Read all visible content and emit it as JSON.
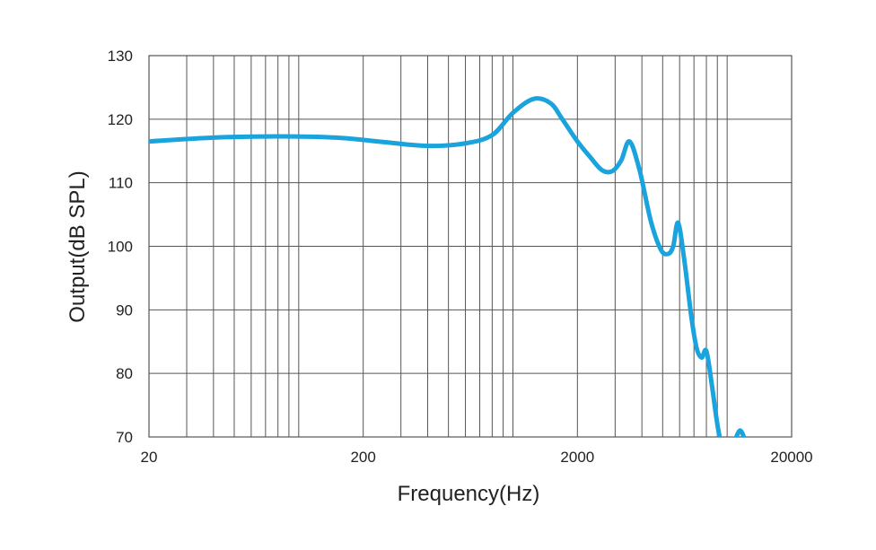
{
  "chart_data": {
    "type": "line",
    "title": "",
    "xlabel": "Frequency(Hz)",
    "ylabel": "Output(dB SPL)",
    "x_scale": "log",
    "xlim": [
      20,
      20000
    ],
    "ylim": [
      70,
      130
    ],
    "x_tick_labels": [
      "20",
      "200",
      "2000",
      "20000"
    ],
    "y_tick_labels": [
      "70",
      "80",
      "90",
      "100",
      "110",
      "120",
      "130"
    ],
    "grid": true,
    "legend": "none",
    "series_color": "#1aa3dc",
    "series": [
      {
        "x": [
          20,
          40,
          80,
          150,
          250,
          400,
          600,
          800,
          1000,
          1250,
          1500,
          1700,
          2000,
          2300,
          2600,
          2900,
          3200,
          3500,
          3900,
          4400,
          4900,
          5300,
          5600,
          5900,
          6300,
          6800,
          7200,
          7600,
          8000,
          8500,
          9000,
          9500,
          10000,
          10400,
          10800,
          11200,
          11500,
          11800,
          12100
        ],
        "y": [
          116.5,
          117.1,
          117.3,
          117.1,
          116.4,
          115.8,
          116.2,
          117.5,
          121.0,
          123.2,
          122.5,
          120.0,
          116.5,
          114.0,
          112.0,
          111.8,
          113.5,
          116.5,
          112.0,
          104.0,
          99.5,
          98.8,
          100.0,
          103.7,
          98.0,
          89.0,
          84.0,
          82.5,
          83.5,
          78.0,
          72.0,
          68.0,
          65.5,
          66.0,
          69.0,
          70.5,
          71.0,
          70.5,
          69.5
        ]
      }
    ]
  }
}
